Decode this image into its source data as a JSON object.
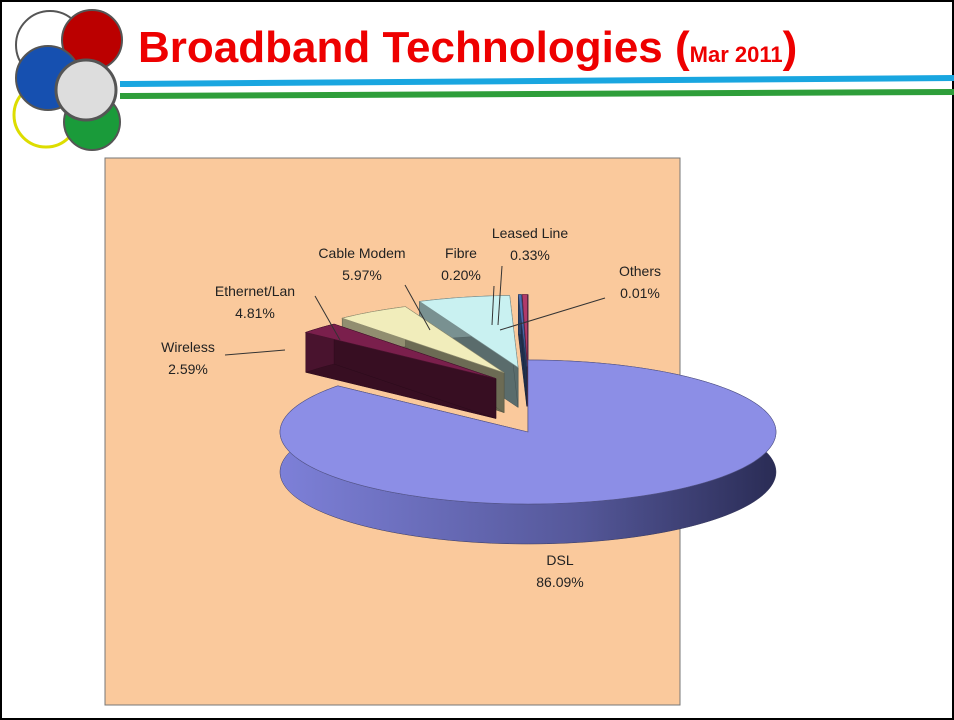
{
  "header": {
    "title": "Broadband Technologies (",
    "title_date": "Mar 2011",
    "title_close": ")"
  },
  "chart_data": {
    "type": "pie3d",
    "categories": [
      "DSL",
      "Wireless",
      "Ethernet/Lan",
      "Cable Modem",
      "Fibre",
      "Leased Line",
      "Others"
    ],
    "values": [
      86.09,
      2.59,
      4.81,
      5.97,
      0.2,
      0.33,
      0.01
    ],
    "value_labels": [
      "86.09%",
      "2.59%",
      "4.81%",
      "5.97%",
      "0.20%",
      "0.33%",
      "0.01%"
    ],
    "colors": [
      "#8c8ee6",
      "#7a1f4c",
      "#f1edbb",
      "#c9f1f1",
      "#4a6cb0",
      "#b03a6a",
      "#7a5aa0"
    ]
  }
}
